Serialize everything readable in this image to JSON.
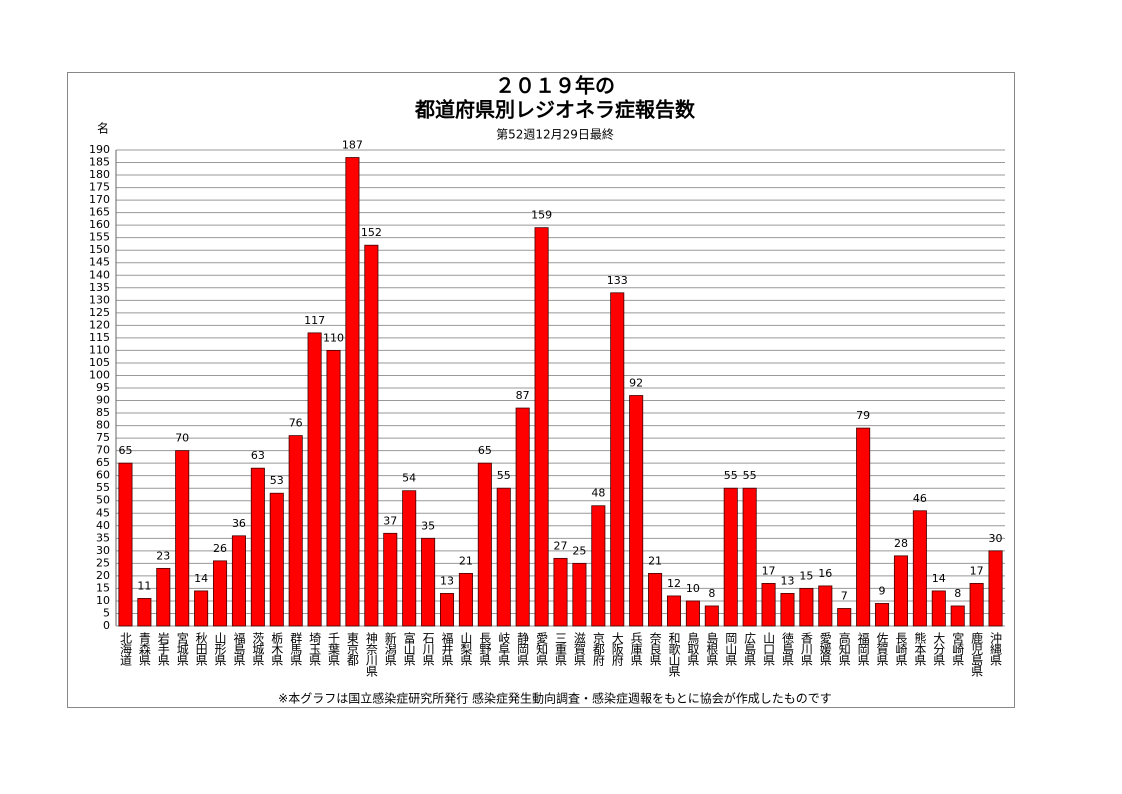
{
  "chart_data": {
    "type": "bar",
    "title": [
      "２０１９年の",
      "都道府県別レジオネラ症報告数"
    ],
    "subtitle": "第52週12月29日最終",
    "y_label": "名",
    "footnote": "※本グラフは国立感染症研究所発行 感染症発生動向調査・感染症週報をもとに協会が作成したものです",
    "categories": [
      "北海道",
      "青森県",
      "岩手県",
      "宮城県",
      "秋田県",
      "山形県",
      "福島県",
      "茨城県",
      "栃木県",
      "群馬県",
      "埼玉県",
      "千葉県",
      "東京都",
      "神奈川県",
      "新潟県",
      "富山県",
      "石川県",
      "福井県",
      "山梨県",
      "長野県",
      "岐阜県",
      "静岡県",
      "愛知県",
      "三重県",
      "滋賀県",
      "京都府",
      "大阪府",
      "兵庫県",
      "奈良県",
      "和歌山県",
      "鳥取県",
      "島根県",
      "岡山県",
      "広島県",
      "山口県",
      "徳島県",
      "香川県",
      "愛媛県",
      "高知県",
      "福岡県",
      "佐賀県",
      "長崎県",
      "熊本県",
      "大分県",
      "宮崎県",
      "鹿児島県",
      "沖縄県"
    ],
    "values": [
      65,
      11,
      23,
      70,
      14,
      26,
      36,
      63,
      53,
      76,
      117,
      110,
      187,
      152,
      37,
      54,
      35,
      13,
      21,
      65,
      55,
      87,
      159,
      27,
      25,
      48,
      133,
      92,
      21,
      12,
      10,
      8,
      55,
      55,
      17,
      13,
      15,
      16,
      7,
      79,
      9,
      28,
      46,
      14,
      8,
      17,
      30
    ],
    "color": "#ff0000",
    "ylim": [
      0,
      190
    ],
    "yticks": [
      0,
      5,
      10,
      15,
      20,
      25,
      30,
      35,
      40,
      45,
      50,
      55,
      60,
      65,
      70,
      75,
      80,
      85,
      90,
      95,
      100,
      105,
      110,
      115,
      120,
      125,
      130,
      135,
      140,
      145,
      150,
      155,
      160,
      165,
      170,
      175,
      180,
      185,
      190
    ],
    "grid": true
  }
}
